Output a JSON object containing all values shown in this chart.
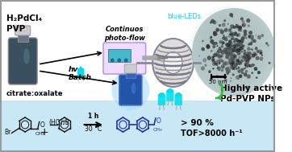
{
  "bg_color": "#ffffff",
  "bottom_bg_color": "#c8e8f5",
  "border_color": "#999999",
  "title_text": "H₂PdCl₄\nPVP",
  "citrate_text": "citrate:oxalate",
  "flow_label": "Continuos\nphoto-flow",
  "blue_leds": "blue-LEDs",
  "hv_label": "hv",
  "batch_label": "Batch",
  "highly_active": "Highly active\nPd-PVP NPs",
  "scale_bar": "50 nm",
  "reaction_conditions_1": "1 h",
  "reaction_conditions_2": "30 °C",
  "yield_text_1": "> 90 %",
  "yield_text_2": "TOF>8000 h⁻¹",
  "arrow_color": "#111111",
  "cyan_color": "#00ddee",
  "blue_color": "#223388",
  "light_blue": "#aaddff",
  "pump_color": "#eeddff",
  "pump_edge": "#bb99ee",
  "vial_color": "#445566",
  "green_arrow": "#33bb44",
  "coil_color": "#888899",
  "tem_color": "#aabbcc"
}
